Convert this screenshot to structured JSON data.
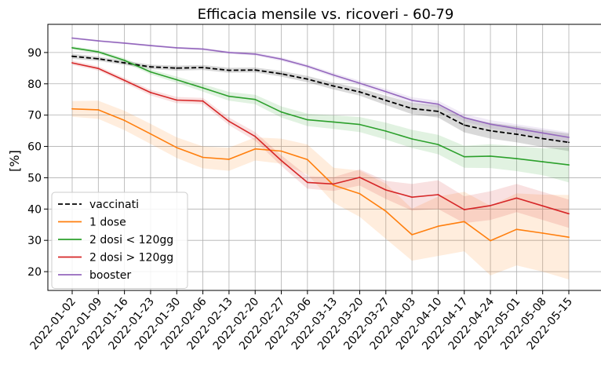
{
  "chart_data": {
    "type": "line",
    "title": "Efficacia mensile vs. ricoveri - 60-79",
    "xlabel": "",
    "ylabel": "[%]",
    "ylim": [
      14,
      99
    ],
    "yticks": [
      20,
      30,
      40,
      50,
      60,
      70,
      80,
      90
    ],
    "grid": true,
    "legend_position": "lower-left",
    "categories": [
      "2022-01-02",
      "2022-01-09",
      "2022-01-16",
      "2022-01-23",
      "2022-01-30",
      "2022-02-06",
      "2022-02-13",
      "2022-02-20",
      "2022-02-27",
      "2022-03-06",
      "2022-03-13",
      "2022-03-20",
      "2022-03-27",
      "2022-04-03",
      "2022-04-10",
      "2022-04-17",
      "2022-04-24",
      "2022-05-01",
      "2022-05-08",
      "2022-05-15"
    ],
    "series": [
      {
        "name": "vaccinati",
        "color": "#000000",
        "dashed": true,
        "values": [
          88.8,
          88.0,
          86.7,
          85.4,
          85.0,
          85.2,
          84.3,
          84.4,
          83.2,
          81.5,
          79.3,
          77.4,
          74.7,
          72.1,
          71.2,
          66.8,
          65.0,
          63.9,
          62.5,
          61.3
        ],
        "lower": [
          88.0,
          87.3,
          86.0,
          84.7,
          84.2,
          84.4,
          83.5,
          83.6,
          82.3,
          80.5,
          78.2,
          76.2,
          73.2,
          70.3,
          69.2,
          64.5,
          62.5,
          61.3,
          59.8,
          58.5
        ],
        "upper": [
          89.6,
          88.7,
          87.4,
          86.1,
          85.8,
          86.0,
          85.1,
          85.2,
          84.1,
          82.5,
          80.4,
          78.6,
          76.2,
          73.9,
          73.2,
          69.1,
          67.5,
          66.5,
          65.2,
          64.1
        ]
      },
      {
        "name": "1 dose",
        "color": "#ff7f0e",
        "dashed": false,
        "values": [
          72.0,
          71.7,
          68.3,
          64.0,
          59.6,
          56.5,
          55.9,
          59.2,
          58.5,
          55.8,
          47.6,
          44.9,
          39.3,
          31.8,
          34.5,
          36.0,
          29.9,
          33.5,
          32.3,
          31.0
        ],
        "lower": [
          69.5,
          68.8,
          65.2,
          60.8,
          56.3,
          53.0,
          52.2,
          55.5,
          54.5,
          51.0,
          42.0,
          37.5,
          30.5,
          23.5,
          25.0,
          26.5,
          18.8,
          22.0,
          20.0,
          17.5
        ],
        "upper": [
          74.5,
          74.6,
          71.4,
          67.2,
          62.9,
          60.0,
          59.6,
          62.9,
          62.5,
          60.6,
          53.2,
          52.3,
          48.1,
          40.1,
          44.0,
          45.5,
          41.0,
          45.0,
          44.6,
          44.5
        ]
      },
      {
        "name": "2 dosi < 120gg",
        "color": "#2ca02c",
        "dashed": false,
        "values": [
          91.5,
          90.2,
          87.5,
          83.8,
          81.3,
          78.7,
          76.0,
          75.0,
          71.0,
          68.5,
          67.8,
          67.0,
          64.9,
          62.4,
          60.6,
          56.7,
          56.9,
          56.1,
          55.1,
          54.1
        ],
        "lower": [
          91.0,
          89.6,
          86.8,
          83.0,
          80.3,
          77.5,
          74.6,
          73.5,
          69.2,
          66.5,
          65.6,
          64.6,
          62.2,
          59.5,
          57.5,
          53.2,
          53.1,
          52.1,
          50.8,
          48.5
        ],
        "upper": [
          92.0,
          90.8,
          88.2,
          84.6,
          82.3,
          79.9,
          77.4,
          76.5,
          72.8,
          70.5,
          70.0,
          69.4,
          67.6,
          65.3,
          63.7,
          60.2,
          60.7,
          60.1,
          59.4,
          59.7
        ]
      },
      {
        "name": "2 dosi > 120gg",
        "color": "#d62728",
        "dashed": false,
        "values": [
          86.7,
          84.9,
          81.1,
          77.2,
          74.8,
          74.5,
          68.0,
          63.2,
          55.5,
          48.5,
          48.0,
          50.1,
          46.1,
          43.8,
          44.6,
          39.8,
          41.1,
          43.5,
          41.0,
          38.5
        ],
        "lower": [
          86.0,
          84.2,
          80.3,
          76.3,
          73.8,
          73.5,
          66.8,
          61.8,
          53.8,
          46.5,
          45.8,
          47.5,
          43.2,
          39.5,
          40.0,
          35.5,
          36.5,
          39.0,
          36.5,
          34.0
        ],
        "upper": [
          87.4,
          85.6,
          81.9,
          78.1,
          75.8,
          75.5,
          69.2,
          64.6,
          57.2,
          50.5,
          50.2,
          52.7,
          49.0,
          48.0,
          49.2,
          44.1,
          45.7,
          48.0,
          45.5,
          43.0
        ]
      },
      {
        "name": "booster",
        "color": "#9467bd",
        "dashed": false,
        "values": [
          94.6,
          93.7,
          93.0,
          92.2,
          91.5,
          91.1,
          90.0,
          89.5,
          87.9,
          85.6,
          82.8,
          80.2,
          77.5,
          74.7,
          73.5,
          69.2,
          67.1,
          65.7,
          64.3,
          62.9
        ],
        "lower": [
          94.3,
          93.4,
          92.7,
          91.9,
          91.2,
          90.7,
          89.6,
          89.0,
          87.3,
          85.0,
          82.1,
          79.4,
          76.6,
          73.7,
          72.4,
          68.0,
          65.8,
          64.3,
          62.8,
          61.3
        ],
        "upper": [
          94.9,
          94.0,
          93.3,
          92.5,
          91.8,
          91.5,
          90.4,
          90.0,
          88.5,
          86.2,
          83.5,
          81.0,
          78.4,
          75.7,
          74.6,
          70.4,
          68.4,
          67.1,
          65.8,
          64.5
        ]
      }
    ]
  }
}
